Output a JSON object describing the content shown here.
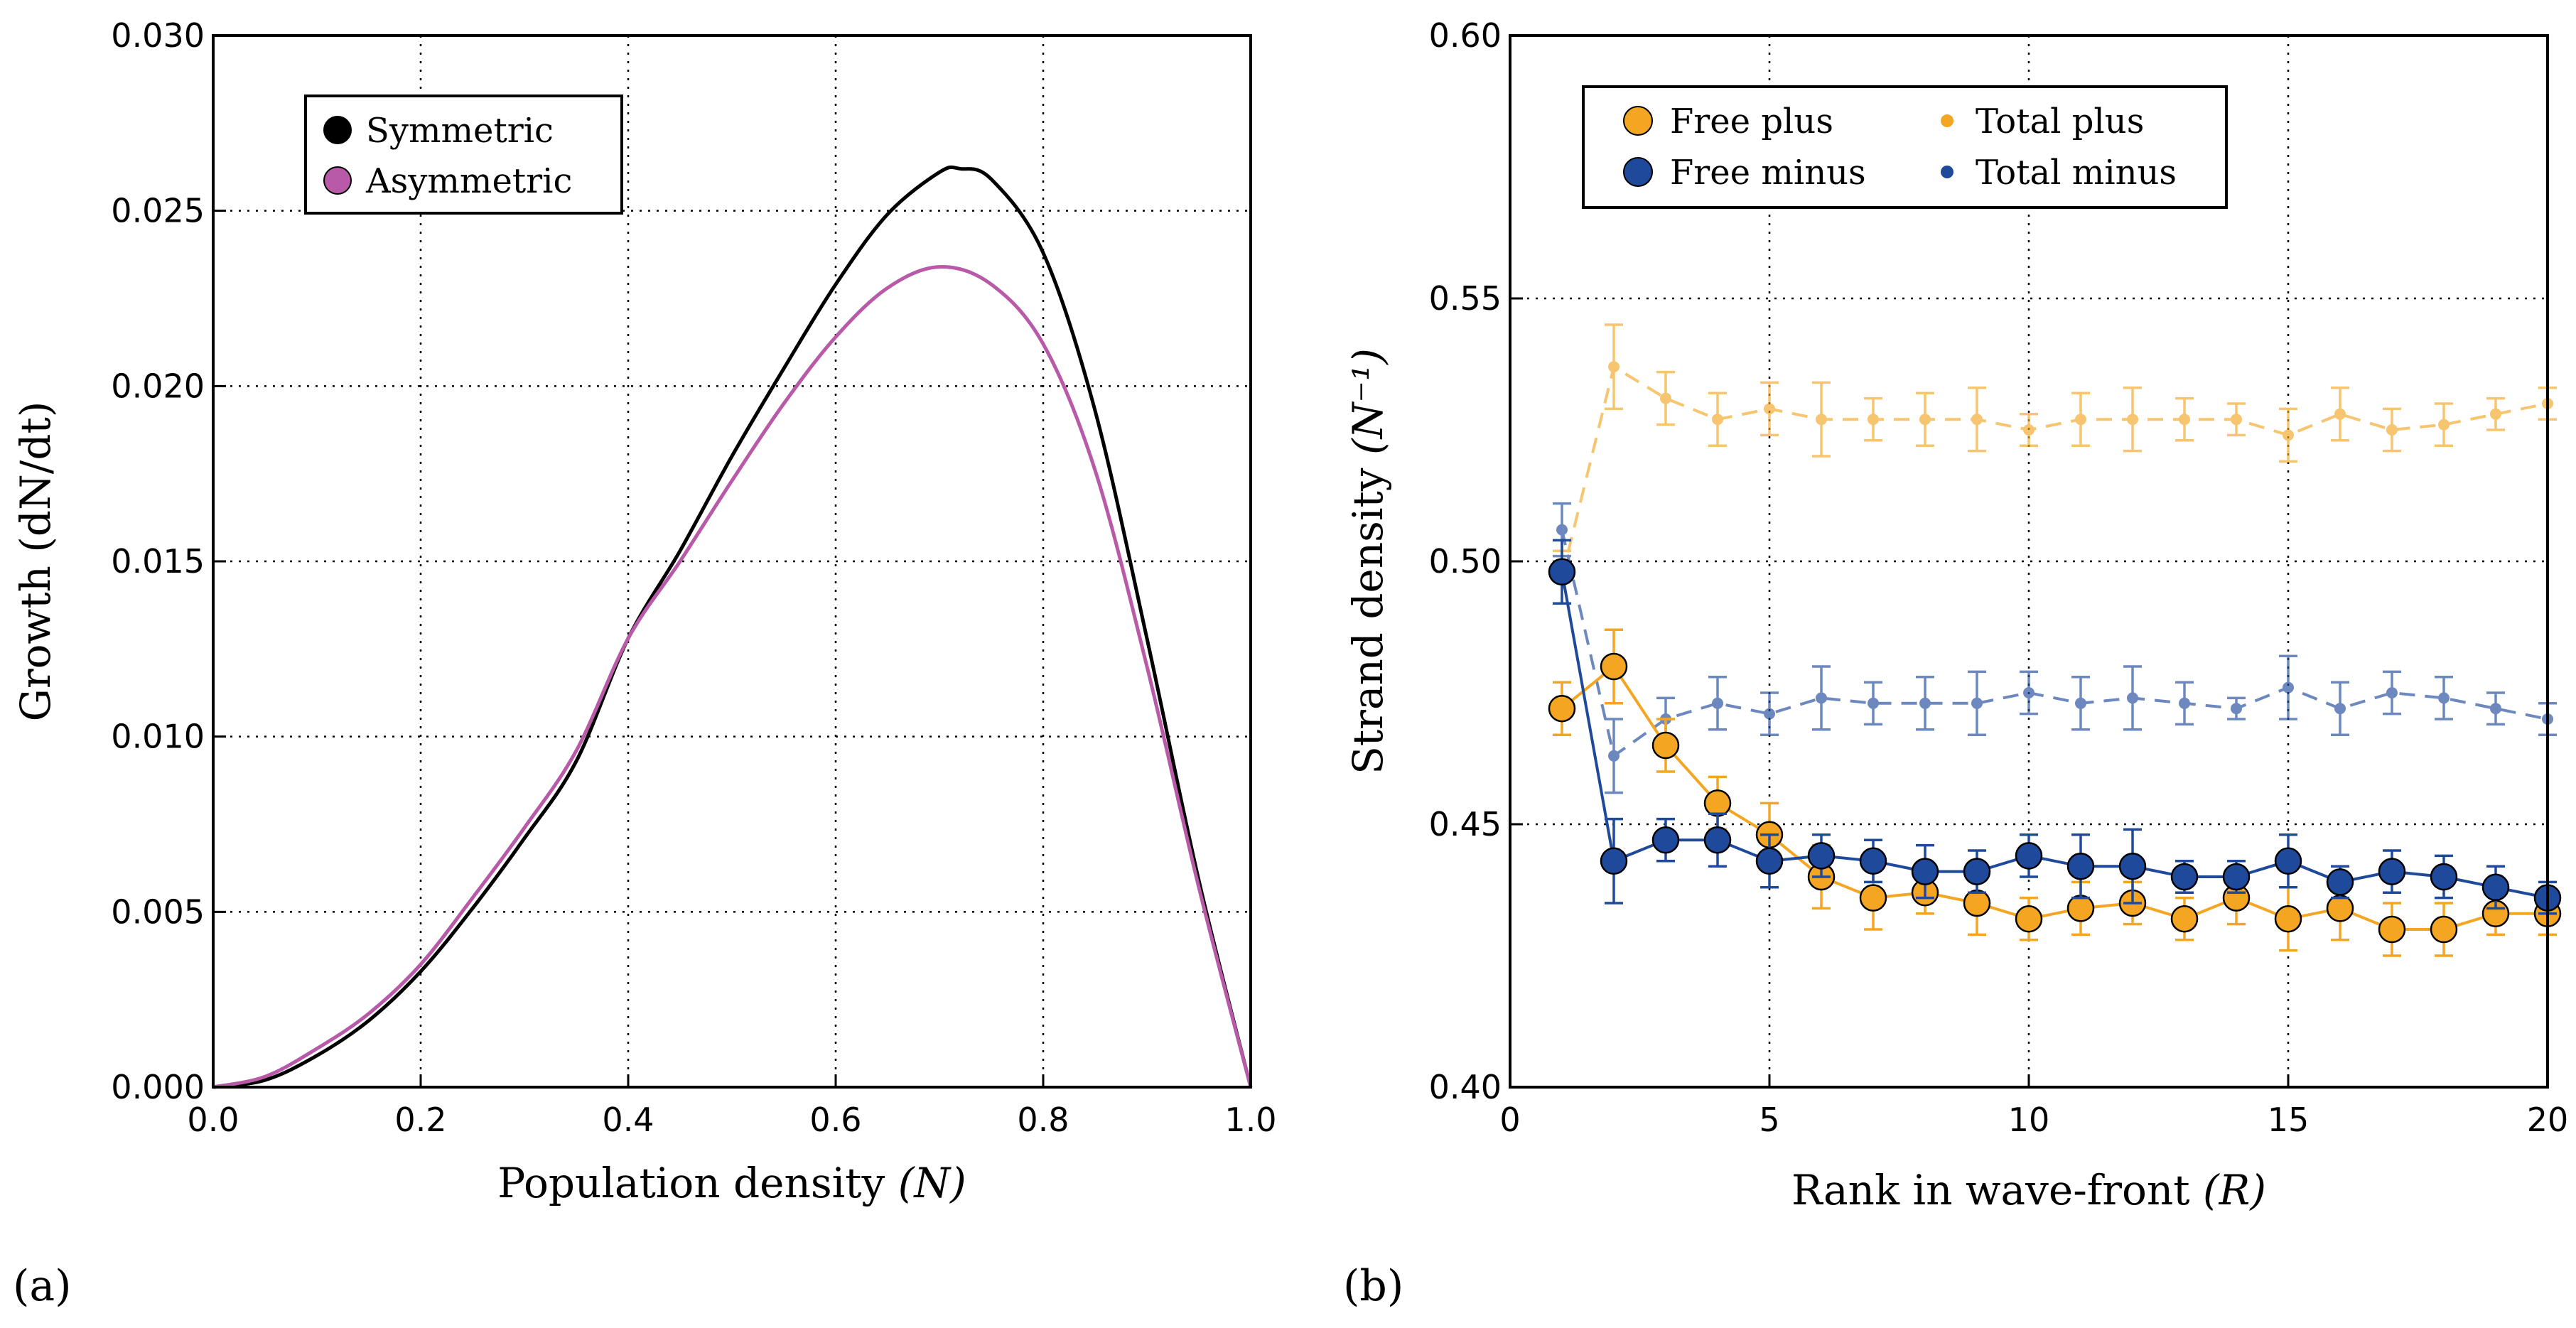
{
  "panels": {
    "a": {
      "label": "(a)"
    },
    "b": {
      "label": "(b)"
    }
  },
  "colors": {
    "symmetric": "#000000",
    "asymmetric": "#b85aa8",
    "plus": "#f4a623",
    "minus": "#1f4a9c"
  },
  "chart_data": [
    {
      "id": "a",
      "type": "line",
      "title": "",
      "xlabel": "Population density",
      "xlabel_var": "(N)",
      "ylabel": "Growth (dN/dt)",
      "xlim": [
        0,
        1
      ],
      "ylim": [
        0,
        0.03
      ],
      "xticks": [
        "0.0",
        "0.2",
        "0.4",
        "0.6",
        "0.8",
        "1.0"
      ],
      "yticks": [
        "0.000",
        "0.005",
        "0.010",
        "0.015",
        "0.020",
        "0.025",
        "0.030"
      ],
      "grid": true,
      "legend_position": "top-left",
      "series": [
        {
          "name": "Symmetric",
          "x": [
            0,
            0.05,
            0.1,
            0.15,
            0.2,
            0.25,
            0.3,
            0.35,
            0.4,
            0.45,
            0.5,
            0.55,
            0.6,
            0.65,
            0.7,
            0.72,
            0.75,
            0.8,
            0.85,
            0.9,
            0.95,
            1.0
          ],
          "y": [
            0,
            0.0002,
            0.0009,
            0.0019,
            0.0033,
            0.0051,
            0.0071,
            0.0093,
            0.0128,
            0.0153,
            0.018,
            0.0205,
            0.0229,
            0.0249,
            0.0261,
            0.0262,
            0.0259,
            0.0238,
            0.0193,
            0.0128,
            0.0059,
            0
          ]
        },
        {
          "name": "Asymmetric",
          "x": [
            0,
            0.05,
            0.1,
            0.15,
            0.2,
            0.25,
            0.3,
            0.35,
            0.4,
            0.45,
            0.5,
            0.55,
            0.6,
            0.65,
            0.7,
            0.75,
            0.8,
            0.85,
            0.9,
            0.95,
            1.0
          ],
          "y": [
            0,
            0.0003,
            0.0011,
            0.0021,
            0.0035,
            0.0054,
            0.0074,
            0.0096,
            0.0128,
            0.015,
            0.0173,
            0.0195,
            0.0214,
            0.0228,
            0.0234,
            0.0229,
            0.0212,
            0.0176,
            0.012,
            0.0057,
            0
          ]
        }
      ]
    },
    {
      "id": "b",
      "type": "line",
      "title": "",
      "xlabel": "Rank in wave-front",
      "xlabel_var": "(R)",
      "ylabel": "Strand density",
      "ylabel_unit": "(N⁻¹)",
      "xlim": [
        0,
        20
      ],
      "ylim": [
        0.4,
        0.6
      ],
      "xticks": [
        "0",
        "5",
        "10",
        "15",
        "20"
      ],
      "yticks": [
        "0.40",
        "0.45",
        "0.50",
        "0.55",
        "0.60"
      ],
      "grid": true,
      "legend_position": "top-left",
      "x": [
        1,
        2,
        3,
        4,
        5,
        6,
        7,
        8,
        9,
        10,
        11,
        12,
        13,
        14,
        15,
        16,
        17,
        18,
        19,
        20
      ],
      "series": [
        {
          "name": "Free plus",
          "style": "solid-large-marker",
          "y": [
            0.472,
            0.48,
            0.465,
            0.454,
            0.448,
            0.44,
            0.436,
            0.437,
            0.435,
            0.432,
            0.434,
            0.435,
            0.432,
            0.436,
            0.432,
            0.434,
            0.43,
            0.43,
            0.433,
            0.433
          ],
          "err": [
            0.005,
            0.007,
            0.005,
            0.005,
            0.006,
            0.006,
            0.006,
            0.004,
            0.006,
            0.004,
            0.005,
            0.004,
            0.004,
            0.005,
            0.006,
            0.006,
            0.005,
            0.005,
            0.004,
            0.004
          ]
        },
        {
          "name": "Free minus",
          "style": "solid-large-marker",
          "y": [
            0.498,
            0.443,
            0.447,
            0.447,
            0.443,
            0.444,
            0.443,
            0.441,
            0.441,
            0.444,
            0.442,
            0.442,
            0.44,
            0.44,
            0.443,
            0.439,
            0.441,
            0.44,
            0.438,
            0.436
          ],
          "err": [
            0.006,
            0.008,
            0.004,
            0.005,
            0.005,
            0.004,
            0.004,
            0.005,
            0.004,
            0.004,
            0.006,
            0.007,
            0.003,
            0.003,
            0.005,
            0.003,
            0.004,
            0.004,
            0.004,
            0.003
          ]
        },
        {
          "name": "Total plus",
          "style": "dashed-small-marker",
          "y": [
            0.497,
            0.537,
            0.531,
            0.527,
            0.529,
            0.527,
            0.527,
            0.527,
            0.527,
            0.525,
            0.527,
            0.527,
            0.527,
            0.527,
            0.524,
            0.528,
            0.525,
            0.526,
            0.528,
            0.53
          ],
          "err": [
            0.005,
            0.008,
            0.005,
            0.005,
            0.005,
            0.007,
            0.004,
            0.005,
            0.006,
            0.003,
            0.005,
            0.006,
            0.004,
            0.003,
            0.005,
            0.005,
            0.004,
            0.004,
            0.003,
            0.003
          ]
        },
        {
          "name": "Total minus",
          "style": "dashed-small-marker",
          "y": [
            0.506,
            0.463,
            0.47,
            0.473,
            0.471,
            0.474,
            0.473,
            0.473,
            0.473,
            0.475,
            0.473,
            0.474,
            0.473,
            0.472,
            0.476,
            0.472,
            0.475,
            0.474,
            0.472,
            0.47
          ],
          "err": [
            0.005,
            0.007,
            0.004,
            0.005,
            0.004,
            0.006,
            0.004,
            0.005,
            0.006,
            0.004,
            0.005,
            0.006,
            0.004,
            0.002,
            0.006,
            0.005,
            0.004,
            0.004,
            0.003,
            0.003
          ]
        }
      ]
    }
  ]
}
